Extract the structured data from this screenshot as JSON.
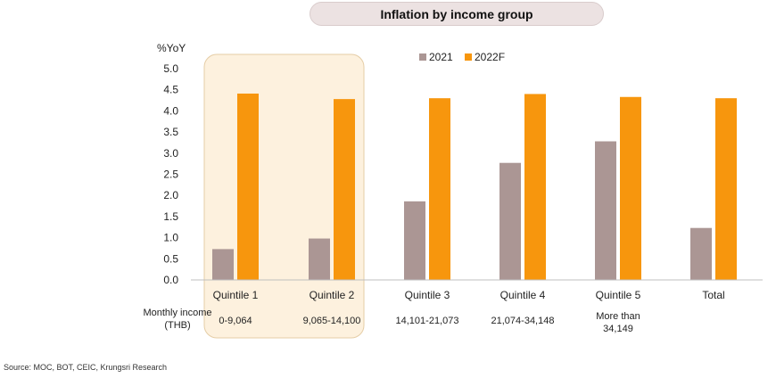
{
  "title": "Inflation by income group",
  "source": "Source: MOC, BOT, CEIC, Krungsri Research",
  "income_label_line1": "Monthly income",
  "income_label_line2": "(THB)",
  "colors": {
    "s2021": "#ab9694",
    "s2022": "#f7960d",
    "highlight": "#fdf1de",
    "highlight_border": "#e5cda6"
  },
  "chart_data": {
    "type": "bar",
    "ylabel": "%YoY",
    "ylim": [
      0,
      5.0
    ],
    "yticks": [
      "0.0",
      "0.5",
      "1.0",
      "1.5",
      "2.0",
      "2.5",
      "3.0",
      "3.5",
      "4.0",
      "4.5",
      "5.0"
    ],
    "categories": [
      "Quintile 1",
      "Quintile 2",
      "Quintile 3",
      "Quintile 4",
      "Quintile 5",
      "Total"
    ],
    "income_ranges": [
      [
        "0-9,064"
      ],
      [
        "9,065-14,100"
      ],
      [
        "14,101-21,073"
      ],
      [
        "21,074-34,148"
      ],
      [
        "More than",
        "34,149"
      ],
      []
    ],
    "series": [
      {
        "name": "2021",
        "values": [
          0.73,
          0.98,
          1.86,
          2.77,
          3.28,
          1.23
        ]
      },
      {
        "name": "2022F",
        "values": [
          4.41,
          4.28,
          4.3,
          4.4,
          4.33,
          4.3
        ]
      }
    ],
    "highlighted_categories": [
      "Quintile 1",
      "Quintile 2"
    ],
    "legend_position": "top-center"
  }
}
